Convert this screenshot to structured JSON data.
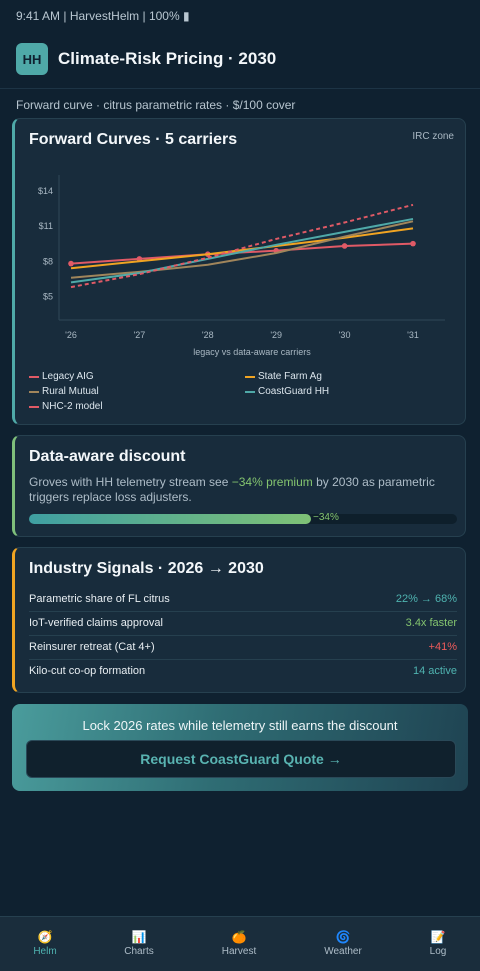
{
  "status_bar": "9:41 AM | HarvestHelm | 100% ▮",
  "header": {
    "logo": "HH",
    "title": "Climate-Risk Pricing · 2030"
  },
  "subtitle": "Forward curve · citrus parametric rates · $/100 cover",
  "forward_curves": {
    "title": "Forward Curves · 5 carriers",
    "zone": "IRC zone",
    "legend": [
      "Legacy AIG",
      "State Farm Ag",
      "Rural Mutual",
      "CoastGuard HH",
      "NHC-2 model"
    ]
  },
  "chart_data": {
    "type": "line",
    "x": [
      "'26",
      "'27",
      "'28",
      "'29",
      "'30",
      "'31"
    ],
    "y_ticks": [
      "$14",
      "$11",
      "$8",
      "$5"
    ],
    "xlabel": "legacy vs data-aware carriers",
    "ylabel": "",
    "ylim": [
      3,
      15
    ],
    "series": [
      {
        "name": "Legacy AIG",
        "color": "#e05a66",
        "dash": false,
        "markers": true,
        "values": [
          7.8,
          8.2,
          8.6,
          8.9,
          9.3,
          9.5
        ]
      },
      {
        "name": "State Farm Ag",
        "color": "#f0a422",
        "dash": false,
        "markers": false,
        "values": [
          7.4,
          8.0,
          8.6,
          9.3,
          10.0,
          10.8
        ]
      },
      {
        "name": "Rural Mutual",
        "color": "#a0855b",
        "dash": false,
        "markers": false,
        "values": [
          6.6,
          7.1,
          7.7,
          8.7,
          10.1,
          11.4
        ]
      },
      {
        "name": "CoastGuard HH",
        "color": "#4fa9a8",
        "dash": false,
        "markers": false,
        "values": [
          6.2,
          7.0,
          8.2,
          9.4,
          10.5,
          11.6
        ]
      },
      {
        "name": "NHC-2 model",
        "color": "#e05a66",
        "dash": true,
        "markers": false,
        "values": [
          5.8,
          6.9,
          8.3,
          9.9,
          11.3,
          12.8
        ]
      }
    ]
  },
  "discount": {
    "title": "Data-aware discount",
    "text_before": "Groves with HH telemetry stream see ",
    "highlight": "−34% premium",
    "text_after": " by 2030 as parametric triggers replace loss adjusters.",
    "progress": 0.66,
    "label": "−34%"
  },
  "signals": {
    "title": "Industry Signals · 2026 → 2030",
    "rows": [
      {
        "label": "Parametric share of FL citrus",
        "value": "22% → 68%",
        "color": "#4fb3b0"
      },
      {
        "label": "IoT-verified claims approval",
        "value": "3.4x faster",
        "color": "#84c46f"
      },
      {
        "label": "Reinsurer retreat (Cat 4+)",
        "value": "+41%",
        "color": "#ee5b5b"
      },
      {
        "label": "Kilo-cut co-op formation",
        "value": "14 active",
        "color": "#4fb3b0"
      }
    ]
  },
  "cta": {
    "text": "Lock 2026 rates while telemetry still earns the discount",
    "button": "Request CoastGuard Quote →"
  },
  "tabs": [
    {
      "label": "Helm",
      "icon": "🧭",
      "icon_name": "compass-icon"
    },
    {
      "label": "Charts",
      "icon": "📊",
      "icon_name": "bar-chart-icon"
    },
    {
      "label": "Harvest",
      "icon": "🍊",
      "icon_name": "orange-icon"
    },
    {
      "label": "Weather",
      "icon": "🌀",
      "icon_name": "cyclone-icon"
    },
    {
      "label": "Log",
      "icon": "📝",
      "icon_name": "memo-icon"
    }
  ]
}
